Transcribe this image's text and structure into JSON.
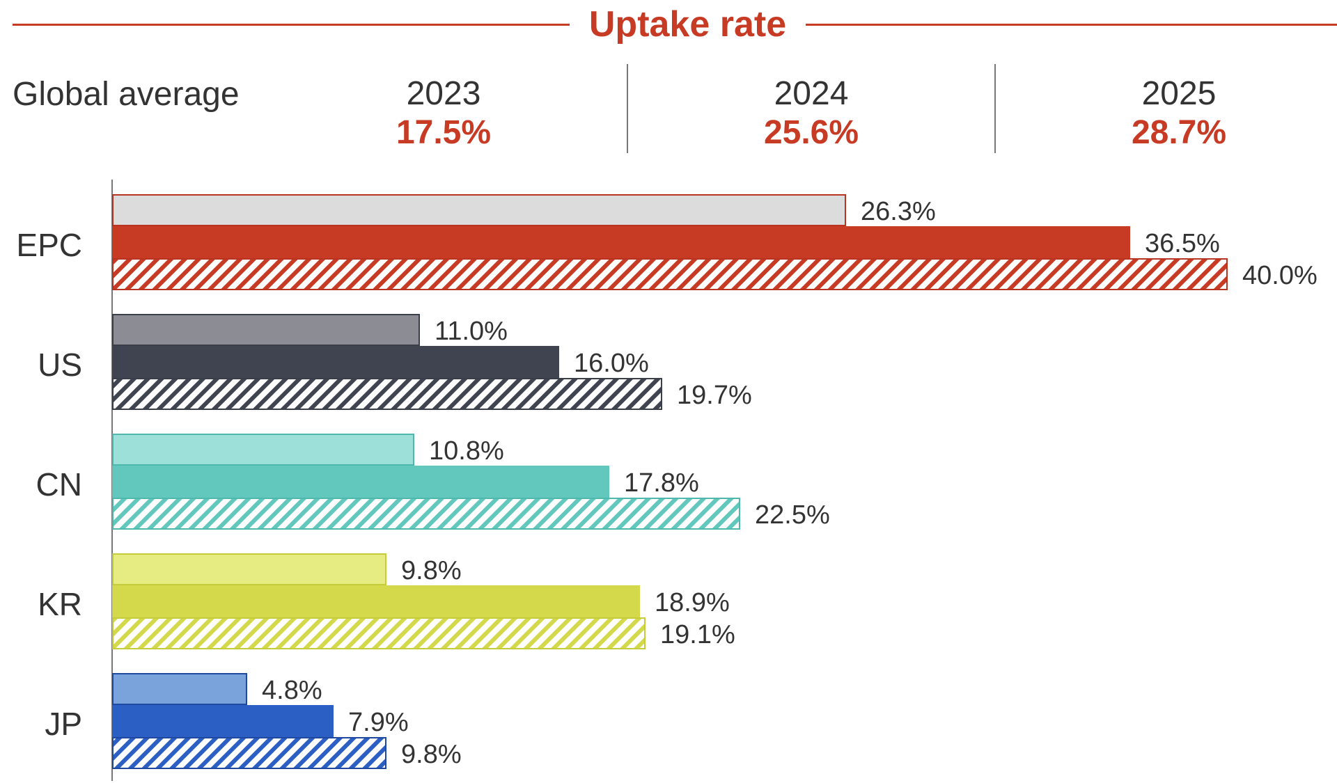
{
  "header": {
    "title": "Uptake rate",
    "global_label": "Global average",
    "years": [
      {
        "year": "2023",
        "value": "17.5%"
      },
      {
        "year": "2024",
        "value": "25.6%"
      },
      {
        "year": "2025",
        "value": "28.7%"
      }
    ]
  },
  "chart_data": {
    "type": "bar",
    "orientation": "horizontal",
    "title": "Uptake rate",
    "categories": [
      "EPC",
      "US",
      "CN",
      "KR",
      "JP"
    ],
    "series": [
      {
        "name": "2023",
        "values": [
          26.3,
          11.0,
          10.8,
          9.8,
          4.8
        ]
      },
      {
        "name": "2024",
        "values": [
          36.5,
          16.0,
          17.8,
          18.9,
          7.9
        ]
      },
      {
        "name": "2025",
        "values": [
          40.0,
          19.7,
          22.5,
          19.1,
          9.8
        ]
      }
    ],
    "data_labels": [
      [
        "26.3%",
        "36.5%",
        "40.0%"
      ],
      [
        "11.0%",
        "16.0%",
        "19.7%"
      ],
      [
        "10.8%",
        "17.8%",
        "22.5%"
      ],
      [
        "9.8%",
        "18.9%",
        "19.1%"
      ],
      [
        "4.8%",
        "7.9%",
        "9.8%"
      ]
    ],
    "xlim": [
      0,
      40
    ],
    "grid": false,
    "colors": {
      "EPC": {
        "light": "#dcdcdc",
        "main": "#c73a24",
        "border": "#b83420"
      },
      "US": {
        "light": "#8c8c94",
        "main": "#3f4450",
        "border": "#3a3e48"
      },
      "CN": {
        "light": "#9de0d9",
        "main": "#62c7bd",
        "border": "#4fb8ad"
      },
      "KR": {
        "light": "#e6ec82",
        "main": "#d3d94a",
        "border": "#c5cc3a"
      },
      "JP": {
        "light": "#7aa3dc",
        "main": "#2c5fc4",
        "border": "#1f48a0"
      }
    }
  }
}
